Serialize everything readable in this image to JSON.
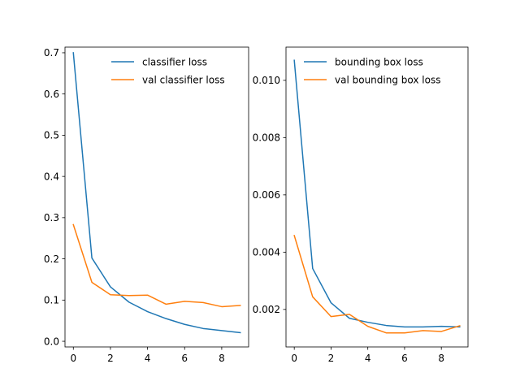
{
  "colors": {
    "series1": "#1f77b4",
    "series2": "#ff7f0e"
  },
  "chart_data": [
    {
      "type": "line",
      "title": "",
      "xlabel": "",
      "ylabel": "",
      "x": [
        0,
        1,
        2,
        3,
        4,
        5,
        6,
        7,
        8,
        9
      ],
      "xlim": [
        -0.45,
        9.45
      ],
      "ylim": [
        -0.0137,
        0.7137
      ],
      "xticks": [
        0,
        2,
        4,
        6,
        8
      ],
      "yticks": [
        0.0,
        0.1,
        0.2,
        0.3,
        0.4,
        0.5,
        0.6,
        0.7
      ],
      "xtick_labels": [
        "0",
        "2",
        "4",
        "6",
        "8"
      ],
      "ytick_labels": [
        "0.0",
        "0.1",
        "0.2",
        "0.3",
        "0.4",
        "0.5",
        "0.6",
        "0.7"
      ],
      "grid": false,
      "legend_position": "top-right",
      "series": [
        {
          "name": "classifier loss",
          "color": "#1f77b4",
          "values": [
            0.7,
            0.202,
            0.132,
            0.095,
            0.072,
            0.055,
            0.041,
            0.031,
            0.026,
            0.021
          ]
        },
        {
          "name": "val classifier loss",
          "color": "#ff7f0e",
          "values": [
            0.283,
            0.143,
            0.113,
            0.111,
            0.112,
            0.09,
            0.097,
            0.094,
            0.084,
            0.087
          ]
        }
      ]
    },
    {
      "type": "line",
      "title": "",
      "xlabel": "",
      "ylabel": "",
      "x": [
        0,
        1,
        2,
        3,
        4,
        5,
        6,
        7,
        8,
        9
      ],
      "xlim": [
        -0.45,
        9.45
      ],
      "ylim": [
        0.00069,
        0.01116
      ],
      "xticks": [
        0,
        2,
        4,
        6,
        8
      ],
      "yticks": [
        0.002,
        0.004,
        0.006,
        0.008,
        0.01
      ],
      "xtick_labels": [
        "0",
        "2",
        "4",
        "6",
        "8"
      ],
      "ytick_labels": [
        "0.002",
        "0.004",
        "0.006",
        "0.008",
        "0.010"
      ],
      "grid": false,
      "legend_position": "top-right",
      "series": [
        {
          "name": "bounding box loss",
          "color": "#1f77b4",
          "values": [
            0.0107,
            0.00343,
            0.00223,
            0.00169,
            0.00155,
            0.00144,
            0.00139,
            0.00139,
            0.00141,
            0.00139
          ]
        },
        {
          "name": "val bounding box loss",
          "color": "#ff7f0e",
          "values": [
            0.00458,
            0.00244,
            0.00175,
            0.00183,
            0.00141,
            0.00118,
            0.00118,
            0.00126,
            0.00123,
            0.00143
          ]
        }
      ]
    }
  ]
}
